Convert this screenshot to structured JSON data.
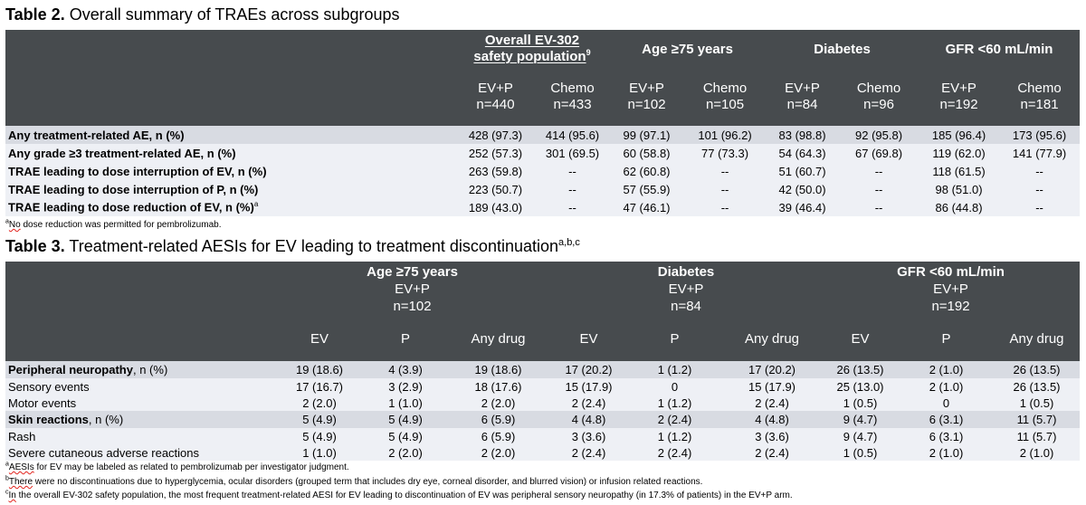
{
  "table2": {
    "caption_bold": "Table 2.",
    "caption_text": " Overall summary of TRAEs across subgroups",
    "groups": [
      {
        "line1": "Overall EV-302",
        "line2": "safety population",
        "sup": "9"
      },
      {
        "line1": "Age ≥75 years"
      },
      {
        "line1": "Diabetes"
      },
      {
        "line1": "GFR <60 mL/min"
      }
    ],
    "subcols": [
      {
        "arm": "EV+P",
        "n": "n=440"
      },
      {
        "arm": "Chemo",
        "n": "n=433"
      },
      {
        "arm": "EV+P",
        "n": "n=102"
      },
      {
        "arm": "Chemo",
        "n": "n=105"
      },
      {
        "arm": "EV+P",
        "n": "n=84"
      },
      {
        "arm": "Chemo",
        "n": "n=96"
      },
      {
        "arm": "EV+P",
        "n": "n=192"
      },
      {
        "arm": "Chemo",
        "n": "n=181"
      }
    ],
    "rows": [
      {
        "label": "Any treatment-related AE, n (%)",
        "sup": "",
        "cells": [
          "428 (97.3)",
          "414 (95.6)",
          "99 (97.1)",
          "101 (96.2)",
          "83 (98.8)",
          "92 (95.8)",
          "185 (96.4)",
          "173 (95.6)"
        ]
      },
      {
        "label": "Any grade ≥3 treatment-related AE, n (%)",
        "sup": "",
        "cells": [
          "252 (57.3)",
          "301 (69.5)",
          "60 (58.8)",
          "77 (73.3)",
          "54 (64.3)",
          "67 (69.8)",
          "119 (62.0)",
          "141 (77.9)"
        ]
      },
      {
        "label": "TRAE leading to dose interruption of EV, n (%)",
        "sup": "",
        "cells": [
          "263 (59.8)",
          "--",
          "62 (60.8)",
          "--",
          "51 (60.7)",
          "--",
          "118 (61.5)",
          "--"
        ]
      },
      {
        "label": "TRAE leading to dose interruption of P, n (%)",
        "sup": "",
        "cells": [
          "223 (50.7)",
          "--",
          "57 (55.9)",
          "--",
          "42 (50.0)",
          "--",
          "98 (51.0)",
          "--"
        ]
      },
      {
        "label": "TRAE leading to dose reduction of EV, n (%)",
        "sup": "a",
        "cells": [
          "189 (43.0)",
          "--",
          "47 (46.1)",
          "--",
          "39 (46.4)",
          "--",
          "86 (44.8)",
          "--"
        ]
      }
    ],
    "footnote_sup": "a",
    "footnote_word": "No",
    "footnote_text": " dose reduction was permitted for pembrolizumab."
  },
  "table3": {
    "caption_bold": "Table 3.",
    "caption_text": " Treatment-related AESIs for EV leading to treatment discontinuation",
    "caption_sup": "a,b,c",
    "groups": [
      {
        "title": "Age ≥75 years",
        "arm": "EV+P",
        "n": "n=102"
      },
      {
        "title": "Diabetes",
        "arm": "EV+P",
        "n": "n=84"
      },
      {
        "title": "GFR <60 mL/min",
        "arm": "EV+P",
        "n": "n=192"
      }
    ],
    "subcols": [
      "EV",
      "P",
      "Any drug",
      "EV",
      "P",
      "Any drug",
      "EV",
      "P",
      "Any drug"
    ],
    "rows": [
      {
        "label": "Peripheral neuropathy",
        "suffix": ", n (%)",
        "bold": true,
        "cells": [
          "19 (18.6)",
          "4 (3.9)",
          "19 (18.6)",
          "17 (20.2)",
          "1 (1.2)",
          "17 (20.2)",
          "26 (13.5)",
          "2 (1.0)",
          "26 (13.5)"
        ]
      },
      {
        "label": "Sensory events",
        "suffix": "",
        "bold": false,
        "cells": [
          "17 (16.7)",
          "3 (2.9)",
          "18 (17.6)",
          "15 (17.9)",
          "0",
          "15 (17.9)",
          "25 (13.0)",
          "2 (1.0)",
          "26 (13.5)"
        ]
      },
      {
        "label": "Motor events",
        "suffix": "",
        "bold": false,
        "cells": [
          "2 (2.0)",
          "1 (1.0)",
          "2 (2.0)",
          "2 (2.4)",
          "1 (1.2)",
          "2 (2.4)",
          "1 (0.5)",
          "0",
          "1 (0.5)"
        ]
      },
      {
        "label": "Skin reactions",
        "suffix": ", n (%)",
        "bold": true,
        "cells": [
          "5 (4.9)",
          "5 (4.9)",
          "6 (5.9)",
          "4 (4.8)",
          "2 (2.4)",
          "4 (4.8)",
          "9 (4.7)",
          "6 (3.1)",
          "11 (5.7)"
        ]
      },
      {
        "label": "Rash",
        "suffix": "",
        "bold": false,
        "cells": [
          "5 (4.9)",
          "5 (4.9)",
          "6 (5.9)",
          "3 (3.6)",
          "1 (1.2)",
          "3 (3.6)",
          "9 (4.7)",
          "6 (3.1)",
          "11 (5.7)"
        ]
      },
      {
        "label": "Severe cutaneous adverse reactions",
        "suffix": "",
        "bold": false,
        "cells": [
          "1 (1.0)",
          "2 (2.0)",
          "2 (2.0)",
          "2 (2.4)",
          "2 (2.4)",
          "2 (2.4)",
          "1 (0.5)",
          "2 (1.0)",
          "2 (1.0)"
        ]
      }
    ],
    "footnotes": [
      {
        "sup": "a",
        "word": "AESIs",
        "text": " for EV may be labeled as related to pembrolizumab per investigator judgment."
      },
      {
        "sup": "b",
        "word": "There",
        "text": " were no discontinuations due to hyperglycemia, ocular disorders (grouped term that includes dry eye, corneal disorder, and blurred vision) or infusion related reactions."
      },
      {
        "sup": "c",
        "word": "In",
        "text": " the overall EV-302 safety population, the most frequent treatment-related AESI for EV leading to discontinuation of EV was peripheral sensory neuropathy (in 17.3% of patients) in the EV+P arm."
      }
    ]
  }
}
